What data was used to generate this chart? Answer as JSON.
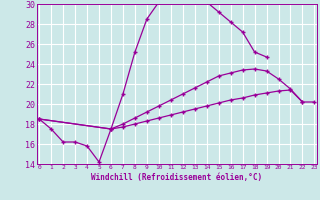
{
  "xlabel": "Windchill (Refroidissement éolien,°C)",
  "bg_color": "#cce8e8",
  "line_color": "#990099",
  "grid_color": "#ffffff",
  "xmin": 0,
  "xmax": 23,
  "ymin": 14,
  "ymax": 30,
  "yticks": [
    14,
    16,
    18,
    20,
    22,
    24,
    26,
    28,
    30
  ],
  "line1_x": [
    0,
    1,
    2,
    3,
    4,
    5,
    6,
    7,
    8,
    9,
    10,
    11,
    12,
    13,
    14,
    15,
    16,
    17,
    18,
    19
  ],
  "line1_y": [
    18.5,
    17.5,
    16.2,
    16.2,
    15.8,
    14.2,
    17.5,
    21.0,
    25.2,
    28.5,
    30.2,
    30.3,
    30.2,
    30.2,
    30.2,
    29.2,
    28.2,
    27.2,
    25.2,
    24.7
  ],
  "line2_x": [
    0,
    6,
    7,
    8,
    9,
    10,
    11,
    12,
    13,
    14,
    15,
    16,
    17,
    18,
    19,
    20,
    21,
    22
  ],
  "line2_y": [
    18.5,
    17.5,
    18.0,
    18.6,
    19.2,
    19.8,
    20.4,
    21.0,
    21.6,
    22.2,
    22.8,
    23.1,
    23.4,
    23.5,
    23.3,
    22.5,
    21.5,
    20.2
  ],
  "line3_x": [
    0,
    6,
    7,
    8,
    9,
    10,
    11,
    12,
    13,
    14,
    15,
    16,
    17,
    18,
    19,
    20,
    21,
    22,
    23
  ],
  "line3_y": [
    18.5,
    17.5,
    17.7,
    18.0,
    18.3,
    18.6,
    18.9,
    19.2,
    19.5,
    19.8,
    20.1,
    20.4,
    20.6,
    20.9,
    21.1,
    21.3,
    21.4,
    20.2,
    20.2
  ]
}
